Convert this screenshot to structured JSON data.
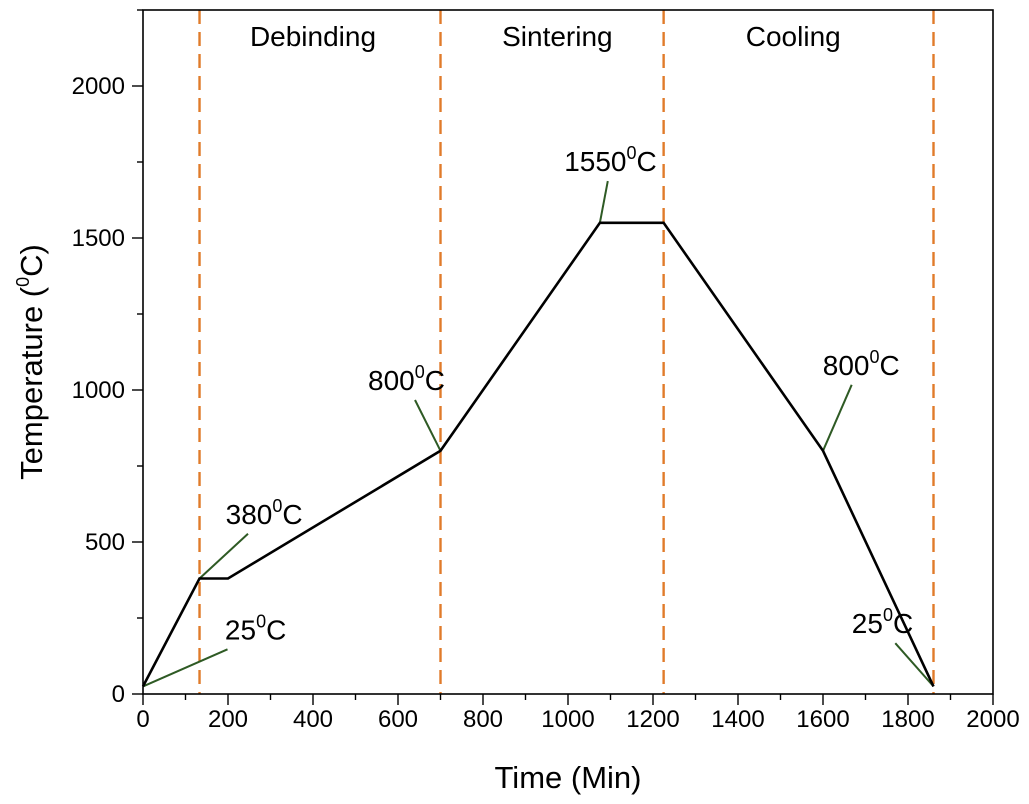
{
  "chart_data": {
    "type": "line",
    "xlabel": "Time (Min)",
    "ylabel_main": "Temperature (",
    "ylabel_sup": "0",
    "ylabel_end": "C)",
    "xlim": [
      0,
      2000
    ],
    "ylim": [
      0,
      2250
    ],
    "x_ticks": [
      0,
      200,
      400,
      600,
      800,
      1000,
      1200,
      1400,
      1600,
      1800,
      2000
    ],
    "y_ticks": [
      0,
      500,
      1000,
      1500,
      2000
    ],
    "grid": false,
    "series": [
      {
        "x": [
          0,
          133,
          200,
          700,
          1075,
          1225,
          1600,
          1860
        ],
        "y": [
          25,
          380,
          380,
          800,
          1550,
          1550,
          800,
          25
        ]
      }
    ],
    "stage_boundaries": [
      133,
      700,
      1225,
      1860
    ],
    "boundary_color": "#e07b2a",
    "line_color": "#000000",
    "leader_color": "#2e5a24",
    "stages": [
      {
        "label": "Debinding",
        "x": 400
      },
      {
        "label": "Sintering",
        "x": 975
      },
      {
        "label": "Cooling",
        "x": 1530
      }
    ],
    "annotations": [
      {
        "main": "25",
        "sup": "0",
        "end": "C",
        "point": [
          0,
          25
        ],
        "label_at": [
          265,
          180
        ]
      },
      {
        "main": "380",
        "sup": "0",
        "end": "C",
        "point": [
          133,
          380
        ],
        "label_at": [
          285,
          560
        ]
      },
      {
        "main": "800",
        "sup": "0",
        "end": "C",
        "point": [
          700,
          800
        ],
        "label_at": [
          620,
          1000
        ]
      },
      {
        "main": "1550",
        "sup": "0",
        "end": "C",
        "point": [
          1075,
          1550
        ],
        "label_at": [
          1100,
          1720
        ]
      },
      {
        "main": "800",
        "sup": "0",
        "end": "C",
        "point": [
          1600,
          800
        ],
        "label_at": [
          1690,
          1050
        ]
      },
      {
        "main": "25",
        "sup": "0",
        "end": "C",
        "point": [
          1860,
          25
        ],
        "label_at": [
          1740,
          200
        ]
      }
    ]
  }
}
